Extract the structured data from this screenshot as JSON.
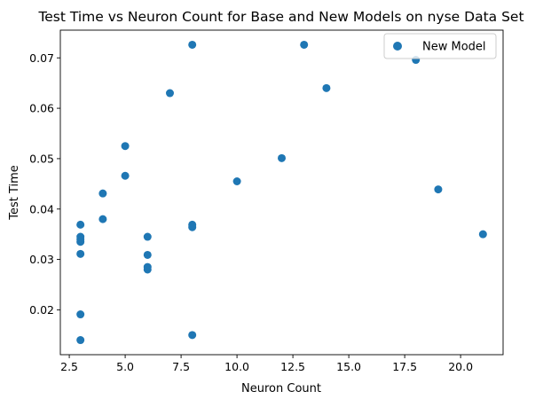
{
  "chart_data": {
    "type": "scatter",
    "title": "Test Time vs Neuron Count for Base and New Models on nyse Data Set",
    "xlabel": "Neuron Count",
    "ylabel": "Test Time",
    "xlim": [
      2.1,
      21.9
    ],
    "ylim": [
      0.0111,
      0.0755
    ],
    "xticks": [
      2.5,
      5.0,
      7.5,
      10.0,
      12.5,
      15.0,
      17.5,
      20.0
    ],
    "xtick_labels": [
      "2.5",
      "5.0",
      "7.5",
      "10.0",
      "12.5",
      "15.0",
      "17.5",
      "20.0"
    ],
    "yticks": [
      0.02,
      0.03,
      0.04,
      0.05,
      0.06,
      0.07
    ],
    "ytick_labels": [
      "0.02",
      "0.03",
      "0.04",
      "0.05",
      "0.06",
      "0.07"
    ],
    "grid": false,
    "legend_position": "top-right",
    "series": [
      {
        "name": "New Model",
        "color": "#1f77b4",
        "points": [
          {
            "x": 3,
            "y": 0.0369
          },
          {
            "x": 3,
            "y": 0.0345
          },
          {
            "x": 3,
            "y": 0.034
          },
          {
            "x": 3,
            "y": 0.0335
          },
          {
            "x": 3,
            "y": 0.0311
          },
          {
            "x": 3,
            "y": 0.0191
          },
          {
            "x": 3,
            "y": 0.014
          },
          {
            "x": 4,
            "y": 0.0431
          },
          {
            "x": 4,
            "y": 0.038
          },
          {
            "x": 5,
            "y": 0.0525
          },
          {
            "x": 5,
            "y": 0.0466
          },
          {
            "x": 6,
            "y": 0.0345
          },
          {
            "x": 6,
            "y": 0.0309
          },
          {
            "x": 6,
            "y": 0.0285
          },
          {
            "x": 6,
            "y": 0.028
          },
          {
            "x": 7,
            "y": 0.063
          },
          {
            "x": 8,
            "y": 0.0726
          },
          {
            "x": 8,
            "y": 0.0369
          },
          {
            "x": 8,
            "y": 0.0364
          },
          {
            "x": 8,
            "y": 0.015
          },
          {
            "x": 10,
            "y": 0.0455
          },
          {
            "x": 12,
            "y": 0.0501
          },
          {
            "x": 13,
            "y": 0.0726
          },
          {
            "x": 14,
            "y": 0.064
          },
          {
            "x": 18,
            "y": 0.0696
          },
          {
            "x": 19,
            "y": 0.0439
          },
          {
            "x": 21,
            "y": 0.035
          }
        ]
      }
    ]
  }
}
